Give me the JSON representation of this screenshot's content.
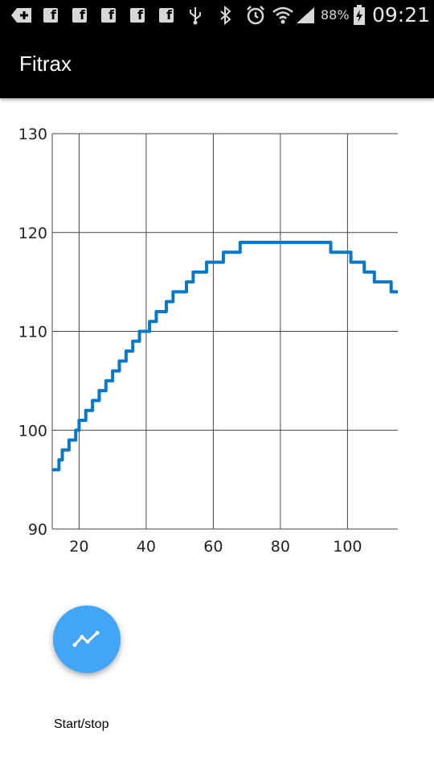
{
  "status_bar": {
    "icons": [
      "add-icon",
      "facebook-icon",
      "facebook-icon",
      "facebook-icon",
      "facebook-icon",
      "facebook-icon",
      "usb-icon",
      "bluetooth-icon",
      "alarm-icon",
      "wifi-icon",
      "signal-icon",
      "battery-charging-icon"
    ],
    "battery": "88%",
    "time": "09:21"
  },
  "app": {
    "title": "Fitrax"
  },
  "chart_data": {
    "type": "line",
    "xlabel": "",
    "ylabel": "",
    "xlim": [
      12,
      115
    ],
    "ylim": [
      90,
      130
    ],
    "x_ticks": [
      20,
      40,
      60,
      80,
      100
    ],
    "y_ticks": [
      90,
      100,
      110,
      120,
      130
    ],
    "grid": true,
    "line_color": "#0a78c8",
    "series": [
      {
        "x": [
          12,
          13,
          14,
          15,
          16,
          17,
          18,
          19,
          20,
          21,
          22,
          23,
          24,
          25,
          26,
          27,
          28,
          29,
          30,
          31,
          32,
          33,
          34,
          35,
          36,
          37,
          38,
          39,
          40,
          41,
          42,
          43,
          44,
          45,
          46,
          47,
          48,
          49,
          50,
          51,
          52,
          53,
          54,
          55,
          56,
          57,
          58,
          59,
          60,
          61,
          62,
          63,
          64,
          65,
          66,
          67,
          68,
          69,
          70,
          72,
          75,
          80,
          85,
          90,
          92,
          93,
          94,
          95,
          96,
          97,
          98,
          99,
          100,
          101,
          102,
          103,
          104,
          105,
          106,
          107,
          108,
          109,
          110,
          111,
          112,
          113,
          114,
          115
        ],
        "y": [
          96,
          96,
          97,
          98,
          98,
          99,
          99,
          100,
          101,
          101,
          102,
          102,
          103,
          103,
          104,
          104,
          105,
          105,
          106,
          106,
          107,
          107,
          108,
          108,
          109,
          109,
          110,
          110,
          110,
          111,
          111,
          112,
          112,
          112,
          113,
          113,
          114,
          114,
          114,
          114,
          115,
          115,
          116,
          116,
          116,
          116,
          117,
          117,
          117,
          117,
          117,
          118,
          118,
          118,
          118,
          118,
          119,
          119,
          119,
          119,
          119,
          119,
          119,
          119,
          119,
          119,
          119,
          118,
          118,
          118,
          118,
          118,
          118,
          117,
          117,
          117,
          117,
          116,
          116,
          116,
          115,
          115,
          115,
          115,
          115,
          114,
          114,
          114
        ]
      }
    ]
  },
  "fab": {
    "icon": "trending-line-icon",
    "label": "Start/stop"
  }
}
